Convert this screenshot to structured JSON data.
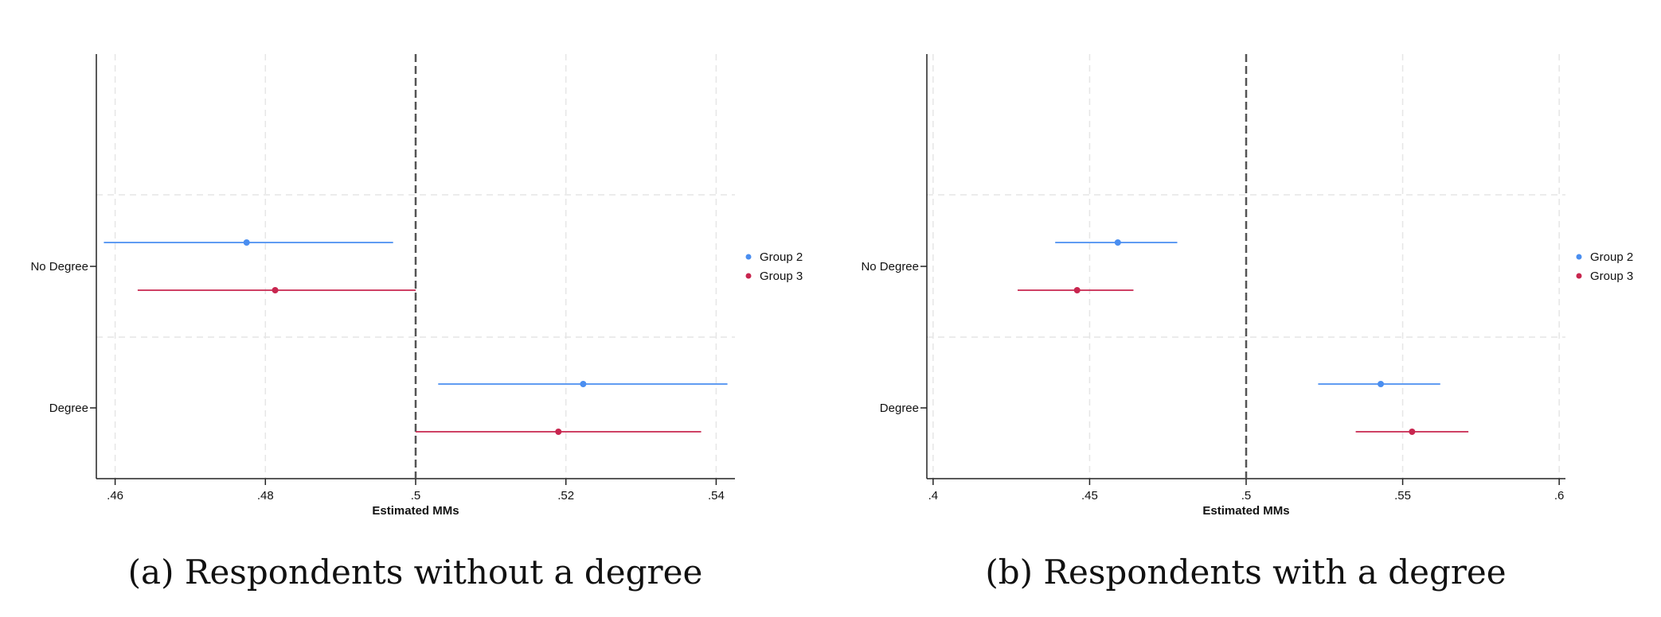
{
  "colors": {
    "group2": "#4a8ef0",
    "group3": "#c8264f",
    "axis": "#222222",
    "grid": "#e6e6e6",
    "refline": "#555555"
  },
  "chart_data": [
    {
      "type": "scatter",
      "caption": "(a) Respondents without a degree",
      "xlabel": "Estimated MMs",
      "ylabel": "",
      "xlim": [
        0.4575,
        0.5425
      ],
      "xticks": [
        {
          "value": 0.46,
          "label": ".46"
        },
        {
          "value": 0.48,
          "label": ".48"
        },
        {
          "value": 0.5,
          "label": ".5"
        },
        {
          "value": 0.52,
          "label": ".52"
        },
        {
          "value": 0.54,
          "label": ".54"
        }
      ],
      "reference_line": 0.5,
      "grid": true,
      "legend_position": "right",
      "categories": [
        "No Degree",
        "Degree"
      ],
      "series": [
        {
          "name": "Group 2",
          "color_key": "group2",
          "estimates": [
            0.4775,
            0.5223
          ],
          "ci_low": [
            0.4585,
            0.503
          ],
          "ci_high": [
            0.497,
            0.5415
          ]
        },
        {
          "name": "Group 3",
          "color_key": "group3",
          "estimates": [
            0.4813,
            0.519
          ],
          "ci_low": [
            0.463,
            0.5
          ],
          "ci_high": [
            0.5,
            0.538
          ]
        }
      ]
    },
    {
      "type": "scatter",
      "caption": "(b) Respondents with a degree",
      "xlabel": "Estimated MMs",
      "ylabel": "",
      "xlim": [
        0.398,
        0.602
      ],
      "xticks": [
        {
          "value": 0.4,
          "label": ".4"
        },
        {
          "value": 0.45,
          "label": ".45"
        },
        {
          "value": 0.5,
          "label": ".5"
        },
        {
          "value": 0.55,
          "label": ".55"
        },
        {
          "value": 0.6,
          "label": ".6"
        }
      ],
      "reference_line": 0.5,
      "grid": true,
      "legend_position": "right",
      "categories": [
        "No Degree",
        "Degree"
      ],
      "series": [
        {
          "name": "Group 2",
          "color_key": "group2",
          "estimates": [
            0.459,
            0.543
          ],
          "ci_low": [
            0.439,
            0.523
          ],
          "ci_high": [
            0.478,
            0.562
          ]
        },
        {
          "name": "Group 3",
          "color_key": "group3",
          "estimates": [
            0.446,
            0.553
          ],
          "ci_low": [
            0.427,
            0.535
          ],
          "ci_high": [
            0.464,
            0.571
          ]
        }
      ]
    }
  ]
}
